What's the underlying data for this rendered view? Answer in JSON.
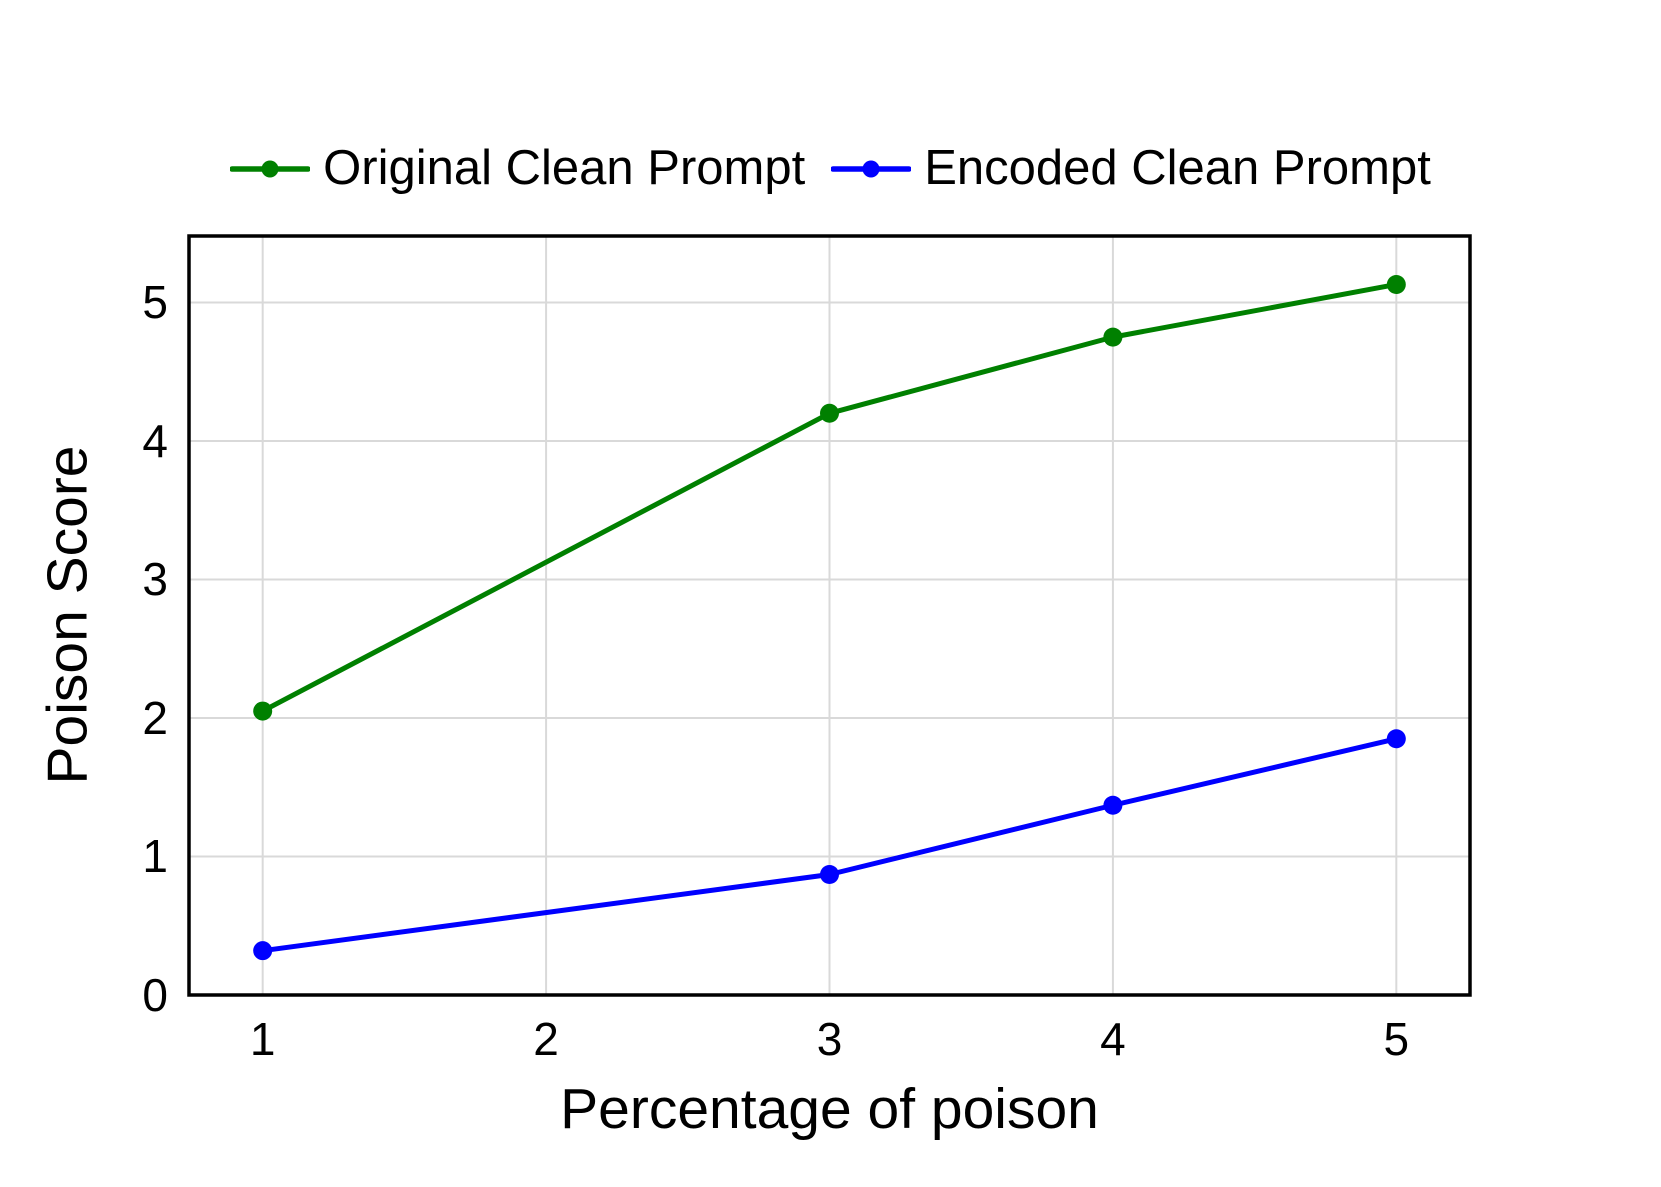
{
  "chart_data": {
    "type": "line",
    "x": [
      1,
      3,
      4,
      5
    ],
    "series": [
      {
        "name": "Original Clean Prompt",
        "color": "#008000",
        "values": [
          2.05,
          4.2,
          4.75,
          5.13
        ]
      },
      {
        "name": "Encoded Clean Prompt",
        "color": "#0000ff",
        "values": [
          0.32,
          0.87,
          1.37,
          1.85
        ]
      }
    ],
    "title": "",
    "xlabel": "Percentage of poison",
    "ylabel": "Poison Score",
    "x_ticks": [
      1,
      2,
      3,
      4,
      5
    ],
    "y_ticks": [
      0,
      1,
      2,
      3,
      4,
      5
    ],
    "xlim": [
      0.74,
      5.26
    ],
    "ylim": [
      0,
      5.48
    ],
    "grid": true,
    "legend_position": "top-center",
    "colors": {
      "background": "#ffffff",
      "grid": "#d9d9d9",
      "frame": "#000000",
      "text": "#000000"
    }
  }
}
